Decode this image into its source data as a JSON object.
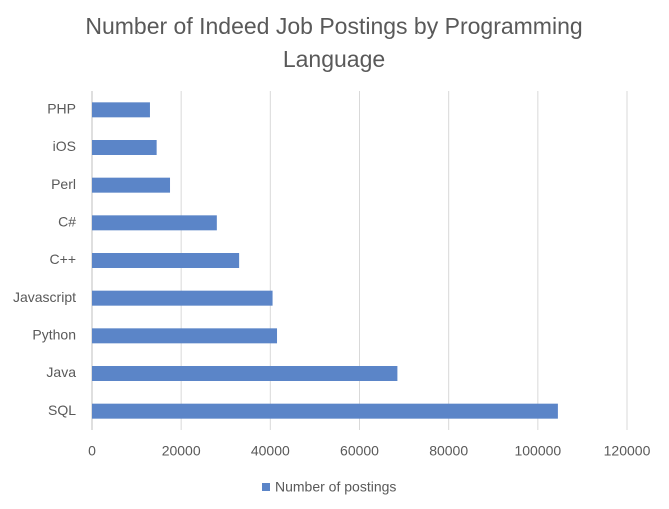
{
  "chart_data": {
    "type": "hbar",
    "title": "Number of Indeed Job Postings by Programming Language",
    "categories": [
      "PHP",
      "iOS",
      "Perl",
      "C#",
      "C++",
      "Javascript",
      "Python",
      "Java",
      "SQL"
    ],
    "series": [
      {
        "name": "Number of postings",
        "color": "#5b85c8",
        "values": [
          13000,
          14500,
          17500,
          28000,
          33000,
          40500,
          41500,
          68500,
          104500
        ]
      }
    ],
    "xlim": [
      0,
      120000
    ],
    "xticks": [
      0,
      20000,
      40000,
      60000,
      80000,
      100000,
      120000
    ],
    "grid": true,
    "legend": "bottom"
  }
}
